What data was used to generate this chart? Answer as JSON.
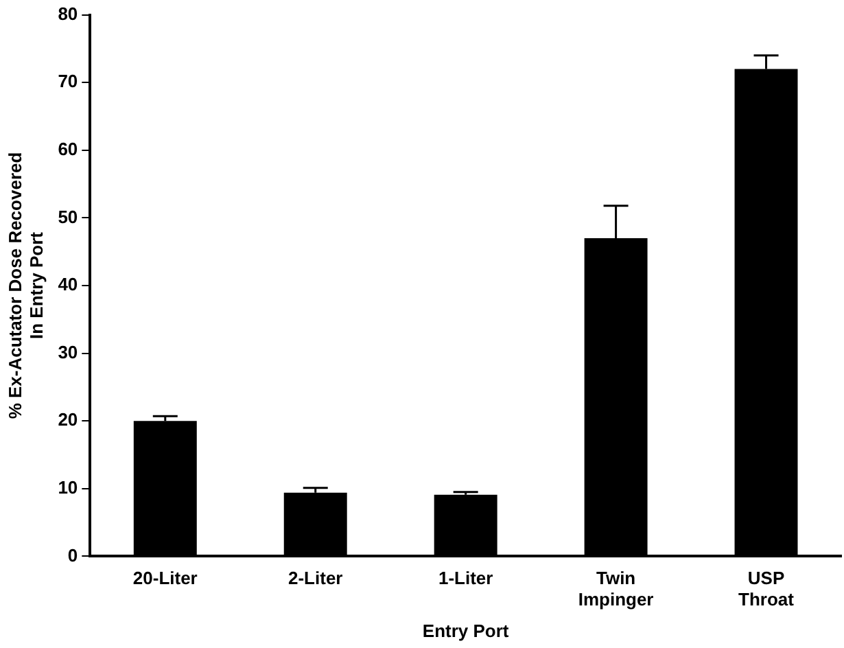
{
  "chart_data": {
    "type": "bar",
    "xlabel": "Entry Port",
    "ylabel": "% Ex-Acutator Dose Recovered\nIn Entry Port",
    "categories": [
      "20-Liter",
      "2-Liter",
      "1-Liter",
      "Twin\nImpinger",
      "USP\nThroat"
    ],
    "values": [
      20,
      9.4,
      9.1,
      47,
      72
    ],
    "errors": [
      0.7,
      0.7,
      0.4,
      4.8,
      2
    ],
    "color": "#000000",
    "ylim": [
      0,
      80
    ],
    "yticks": [
      0,
      10,
      20,
      30,
      40,
      50,
      60,
      70,
      80
    ],
    "grid": false,
    "legend": false
  }
}
